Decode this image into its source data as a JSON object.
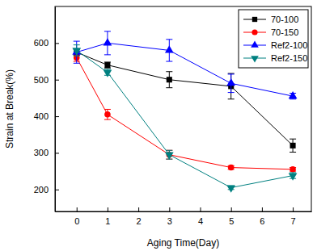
{
  "chart_data": {
    "type": "line",
    "x_label": "Aging Time(Day)",
    "y_label": "Strain at Break(%)",
    "x": [
      0,
      1,
      3,
      5,
      7
    ],
    "xlim": [
      -0.7,
      7.6
    ],
    "xticks": [
      0,
      1,
      2,
      3,
      4,
      5,
      6,
      7
    ],
    "ylim": [
      140,
      700
    ],
    "yticks": [
      200,
      300,
      400,
      500,
      600
    ],
    "legend": "upper-right",
    "grid": false,
    "series": [
      {
        "name": "70-100",
        "color": "#000000",
        "marker": "square",
        "line_style": "solid",
        "values": [
          575,
          540,
          500,
          482,
          320
        ],
        "errors": [
          8,
          8,
          22,
          35,
          18
        ]
      },
      {
        "name": "70-150",
        "color": "#ff0000",
        "marker": "circle",
        "line_style": "solid",
        "values": [
          560,
          405,
          295,
          260,
          255
        ],
        "errors": [
          10,
          14,
          12,
          5,
          5
        ]
      },
      {
        "name": "Ref2-100",
        "color": "#0000ff",
        "marker": "triangle-up",
        "line_style": "solid",
        "values": [
          575,
          600,
          580,
          490,
          455
        ],
        "errors": [
          30,
          32,
          30,
          25,
          8
        ]
      },
      {
        "name": "Ref2-150",
        "color": "#008080",
        "marker": "triangle-down",
        "line_style": "solid",
        "values": [
          580,
          520,
          295,
          205,
          238
        ],
        "errors": [
          15,
          8,
          12,
          5,
          8
        ]
      }
    ]
  }
}
